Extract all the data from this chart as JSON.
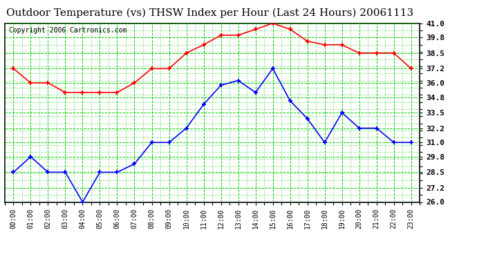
{
  "title": "Outdoor Temperature (vs) THSW Index per Hour (Last 24 Hours) 20061113",
  "copyright": "Copyright 2006 Cartronics.com",
  "hours": [
    "00:00",
    "01:00",
    "02:00",
    "03:00",
    "04:00",
    "05:00",
    "06:00",
    "07:00",
    "08:00",
    "09:00",
    "10:00",
    "11:00",
    "12:00",
    "13:00",
    "14:00",
    "15:00",
    "16:00",
    "17:00",
    "18:00",
    "19:00",
    "20:00",
    "21:00",
    "22:00",
    "23:00"
  ],
  "red_data": [
    37.2,
    36.0,
    36.0,
    35.2,
    35.2,
    35.2,
    35.2,
    36.0,
    37.2,
    37.2,
    38.5,
    39.2,
    40.0,
    40.0,
    40.5,
    41.0,
    40.5,
    39.5,
    39.2,
    39.2,
    38.5,
    38.5,
    38.5,
    37.2
  ],
  "blue_data": [
    28.5,
    29.8,
    28.5,
    28.5,
    26.0,
    28.5,
    28.5,
    29.2,
    31.0,
    31.0,
    32.2,
    34.2,
    35.8,
    36.2,
    35.2,
    37.2,
    34.5,
    33.0,
    31.0,
    33.5,
    32.2,
    32.2,
    31.0,
    31.0
  ],
  "ylim": [
    26.0,
    41.0
  ],
  "yticks": [
    26.0,
    27.2,
    28.5,
    29.8,
    31.0,
    32.2,
    33.5,
    34.8,
    36.0,
    37.2,
    38.5,
    39.8,
    41.0
  ],
  "bg_color": "#ffffff",
  "plot_bg_color": "#ffffff",
  "grid_color": "#00cc00",
  "red_line_color": "#ff0000",
  "blue_line_color": "#0000ff",
  "title_fontsize": 11,
  "copyright_fontsize": 7
}
